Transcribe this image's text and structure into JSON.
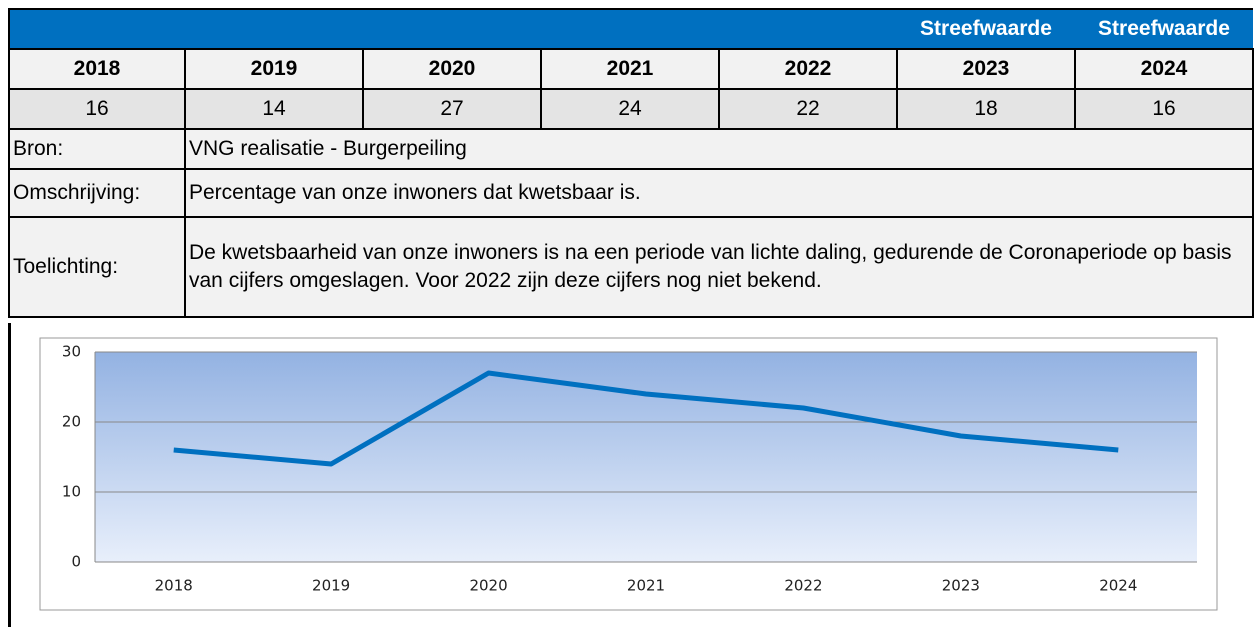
{
  "header": {
    "labels": [
      "Streefwaarde",
      "Streefwaarde"
    ]
  },
  "table": {
    "years": [
      "2018",
      "2019",
      "2020",
      "2021",
      "2022",
      "2023",
      "2024"
    ],
    "values": [
      16,
      14,
      27,
      24,
      22,
      18,
      16
    ],
    "rows": [
      {
        "label": "Bron:",
        "text": "VNG realisatie - Burgerpeiling"
      },
      {
        "label": "Omschrijving:",
        "text": "Percentage van onze inwoners dat kwetsbaar is."
      },
      {
        "label": "Toelichting:",
        "text": "De kwetsbaarheid van onze inwoners is na een periode van lichte daling, gedurende de Coronaperiode op basis van cijfers omgeslagen. Voor 2022 zijn deze cijfers nog niet bekend."
      }
    ]
  },
  "chart_data": {
    "type": "line",
    "categories": [
      "2018",
      "2019",
      "2020",
      "2021",
      "2022",
      "2023",
      "2024"
    ],
    "values": [
      16,
      14,
      27,
      24,
      22,
      18,
      16
    ],
    "color": "#0070c0",
    "ylim": [
      0,
      30
    ],
    "yticks": [
      0,
      10,
      20,
      30
    ],
    "grid": true
  }
}
